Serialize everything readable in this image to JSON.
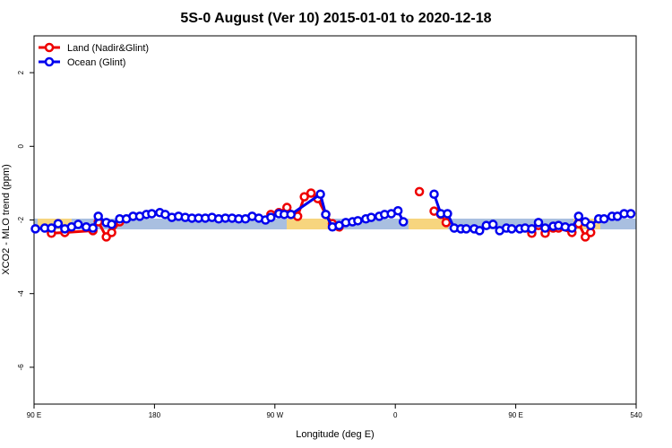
{
  "chart_data": {
    "type": "line",
    "title": "5S-0 August (Ver 10)   2015-01-01 to 2020-12-18",
    "xlabel": "Longitude (deg E)",
    "ylabel": "XCO2 - MLO trend (ppm)",
    "xlim": [
      90,
      540
    ],
    "xticks": [
      {
        "value": 90,
        "label": "90 E"
      },
      180,
      {
        "value": 270,
        "label": "90 W"
      },
      {
        "value": 360,
        "label": "0"
      },
      {
        "value": 450,
        "label": "90 E"
      },
      540
    ],
    "ylim": [
      -7,
      3
    ],
    "yticks": [
      -6,
      -4,
      -2,
      0,
      2
    ],
    "legend": "top-left",
    "series": [
      {
        "name": "Land (Nadir&Glint)",
        "color": "#ee0000",
        "x": [
          103,
          113,
          134,
          138,
          144,
          148,
          154,
          null,
          267,
          273,
          279,
          282,
          287,
          292,
          297,
          302,
          308,
          313,
          318,
          null,
          378,
          null,
          389,
          394,
          398,
          null,
          462,
          467,
          472,
          478,
          482,
          492,
          497,
          502,
          506
        ],
        "values": [
          -2.36,
          -2.34,
          -2.29,
          -2.05,
          -2.46,
          -2.34,
          -2.05,
          null,
          -1.85,
          -1.8,
          -1.66,
          -1.85,
          -1.9,
          -1.37,
          -1.27,
          -1.42,
          -1.85,
          -2.1,
          -2.19,
          null,
          -1.23,
          null,
          -1.76,
          -1.85,
          -2.07,
          null,
          -2.36,
          -2.15,
          -2.36,
          -2.22,
          -2.22,
          -2.34,
          -2.1,
          -2.46,
          -2.34
        ]
      },
      {
        "name": "Ocean (Glint)",
        "color": "#0000ee",
        "x": [
          91,
          98,
          103,
          108,
          113,
          118,
          123,
          129,
          134,
          138,
          144,
          148,
          154,
          159,
          164,
          169,
          174,
          178,
          184,
          188,
          193,
          198,
          203,
          208,
          213,
          218,
          223,
          228,
          233,
          238,
          243,
          248,
          253,
          258,
          263,
          267,
          273,
          277,
          282,
          304,
          308,
          313,
          318,
          323,
          328,
          332,
          338,
          342,
          348,
          352,
          357,
          362,
          366,
          null,
          389,
          394,
          399,
          404,
          409,
          413,
          419,
          423,
          428,
          433,
          438,
          443,
          447,
          453,
          457,
          462,
          467,
          472,
          478,
          482,
          487,
          492,
          497,
          502,
          506,
          512,
          516,
          522,
          526,
          531,
          536
        ],
        "values": [
          -2.24,
          -2.22,
          -2.22,
          -2.1,
          -2.24,
          -2.19,
          -2.12,
          -2.19,
          -2.22,
          -1.9,
          -2.07,
          -2.12,
          -1.97,
          -1.97,
          -1.9,
          -1.9,
          -1.85,
          -1.83,
          -1.8,
          -1.85,
          -1.93,
          -1.9,
          -1.93,
          -1.95,
          -1.95,
          -1.95,
          -1.93,
          -1.97,
          -1.95,
          -1.95,
          -1.97,
          -1.97,
          -1.9,
          -1.95,
          -2.0,
          -1.93,
          -1.83,
          -1.85,
          -1.85,
          -1.3,
          -1.85,
          -2.19,
          -2.15,
          -2.07,
          -2.05,
          -2.02,
          -1.97,
          -1.93,
          -1.9,
          -1.85,
          -1.83,
          -1.75,
          -2.05,
          null,
          -1.3,
          -1.83,
          -1.83,
          -2.22,
          -2.24,
          -2.24,
          -2.24,
          -2.29,
          -2.15,
          -2.12,
          -2.29,
          -2.22,
          -2.24,
          -2.24,
          -2.22,
          -2.24,
          -2.07,
          -2.22,
          -2.17,
          -2.15,
          -2.19,
          -2.22,
          -1.9,
          -2.05,
          -2.15,
          -1.97,
          -1.97,
          -1.9,
          -1.9,
          -1.83,
          -1.83
        ]
      }
    ]
  }
}
